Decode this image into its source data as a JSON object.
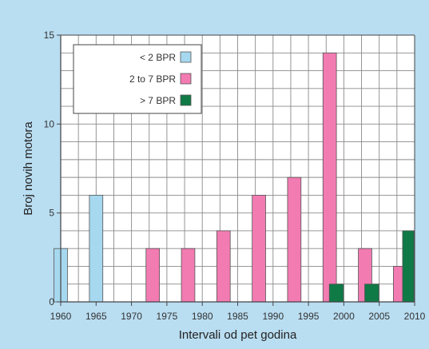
{
  "chart_data": {
    "type": "bar",
    "xlabel": "Intervali od pet godina",
    "ylabel": "Broj novih motora",
    "xlim": [
      1960,
      2010
    ],
    "ylim": [
      0,
      15
    ],
    "x_ticks": [
      1960,
      1965,
      1970,
      1975,
      1980,
      1985,
      1990,
      1995,
      2000,
      2005,
      2010
    ],
    "y_ticks": [
      0,
      5,
      10,
      15
    ],
    "grid": true,
    "legend_position": "top-left",
    "series": [
      {
        "name": "< 2 BPR",
        "color": "#a6d8ef",
        "points": [
          {
            "x": 1960,
            "y": 3
          },
          {
            "x": 1965,
            "y": 6
          }
        ]
      },
      {
        "name": "2 to 7 BPR",
        "color": "#f27bb2",
        "points": [
          {
            "x": 1972.5,
            "y": 3
          },
          {
            "x": 1977.5,
            "y": 3
          },
          {
            "x": 1982.5,
            "y": 4
          },
          {
            "x": 1987.5,
            "y": 6
          },
          {
            "x": 1992.5,
            "y": 7
          },
          {
            "x": 1997.5,
            "y": 14
          },
          {
            "x": 2002.5,
            "y": 3
          },
          {
            "x": 2007.5,
            "y": 2
          }
        ]
      },
      {
        "name": "> 7 BPR",
        "color": "#0f7a46",
        "points": [
          {
            "x": 1997.5,
            "y": 1
          },
          {
            "x": 2002.5,
            "y": 1
          },
          {
            "x": 2007.5,
            "y": 4
          }
        ]
      }
    ]
  }
}
